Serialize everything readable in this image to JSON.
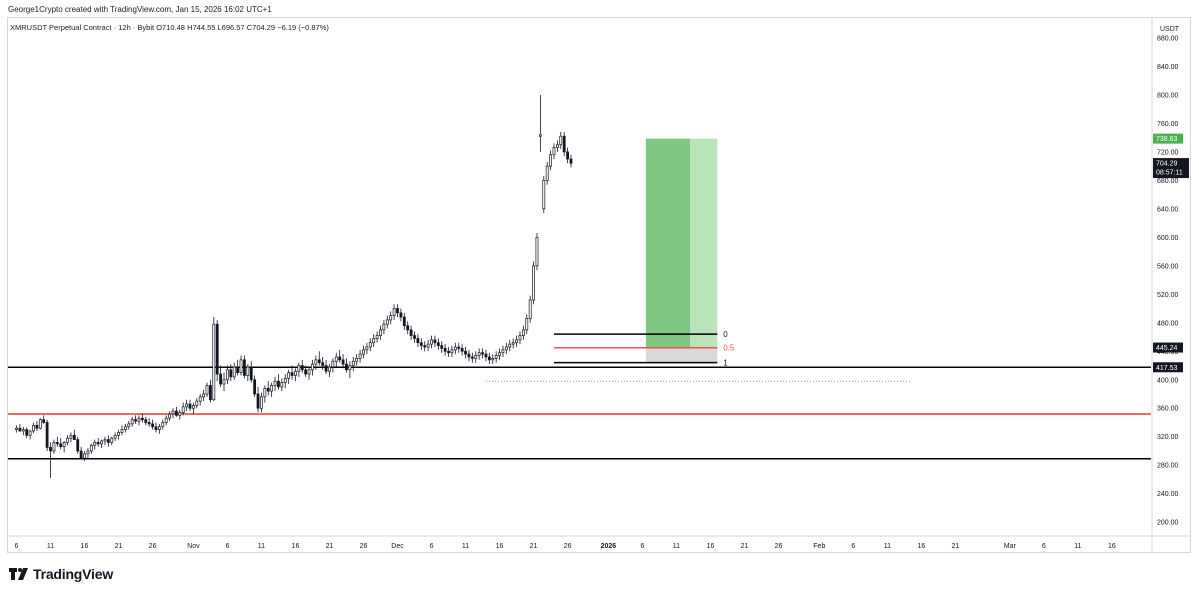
{
  "header": {
    "creator_line": "George1Crypto created with TradingView.com, Jan 15, 2026 16:02 UTC+1"
  },
  "legend": {
    "symbol_line": "XMRUSDT Perpetual Contract · 12h · Bybit",
    "open": "O710.48",
    "high": "H744.55",
    "low": "L696.57",
    "close": "C704.29",
    "change": "−6.19 (−0.87%)"
  },
  "colors": {
    "up": "#26a69a",
    "down": "#131722",
    "support_line": "#000000",
    "mid_line": "#e53935",
    "target_dark": "#81c784",
    "target_light": "#b9e3b9",
    "fib_zone": "#d9d9d9",
    "fib_mid": "#ef5350",
    "price_tag": "#131722"
  },
  "chart_data": {
    "type": "candlestick",
    "price_axis": {
      "unit": "USDT",
      "ticks": [
        "880.00",
        "840.00",
        "800.00",
        "760.00",
        "720.00",
        "680.00",
        "640.00",
        "600.00",
        "560.00",
        "520.00",
        "480.00",
        "440.00",
        "400.00",
        "360.00",
        "320.00",
        "280.00",
        "240.00",
        "200.00"
      ],
      "range": [
        182,
        908
      ]
    },
    "time_axis": {
      "ticks": [
        {
          "label": "6",
          "idx": 2
        },
        {
          "label": "11",
          "idx": 12
        },
        {
          "label": "16",
          "idx": 22
        },
        {
          "label": "21",
          "idx": 32
        },
        {
          "label": "26",
          "idx": 42
        },
        {
          "label": "Nov",
          "idx": 54
        },
        {
          "label": "6",
          "idx": 64
        },
        {
          "label": "11",
          "idx": 74
        },
        {
          "label": "16",
          "idx": 84
        },
        {
          "label": "21",
          "idx": 94
        },
        {
          "label": "26",
          "idx": 104
        },
        {
          "label": "Dec",
          "idx": 114
        },
        {
          "label": "6",
          "idx": 124
        },
        {
          "label": "11",
          "idx": 134
        },
        {
          "label": "16",
          "idx": 144
        },
        {
          "label": "21",
          "idx": 154
        },
        {
          "label": "26",
          "idx": 164
        },
        {
          "label": "2026",
          "idx": 176,
          "bold": true
        },
        {
          "label": "6",
          "idx": 186
        },
        {
          "label": "11",
          "idx": 196
        },
        {
          "label": "16",
          "idx": 206
        },
        {
          "label": "21",
          "idx": 216
        },
        {
          "label": "26",
          "idx": 226
        },
        {
          "label": "Feb",
          "idx": 238
        },
        {
          "label": "6",
          "idx": 248
        },
        {
          "label": "11",
          "idx": 258
        },
        {
          "label": "16",
          "idx": 268
        },
        {
          "label": "21",
          "idx": 278
        },
        {
          "label": "Mar",
          "idx": 294
        },
        {
          "label": "6",
          "idx": 304
        },
        {
          "label": "11",
          "idx": 314
        },
        {
          "label": "16",
          "idx": 324
        }
      ],
      "total_slots": 336
    },
    "candles": [
      [
        330,
        336,
        326,
        332
      ],
      [
        332,
        338,
        327,
        328
      ],
      [
        328,
        334,
        322,
        330
      ],
      [
        330,
        333,
        318,
        322
      ],
      [
        322,
        330,
        316,
        328
      ],
      [
        328,
        340,
        325,
        336
      ],
      [
        336,
        342,
        328,
        332
      ],
      [
        332,
        346,
        330,
        344
      ],
      [
        344,
        350,
        338,
        340
      ],
      [
        340,
        344,
        300,
        305
      ],
      [
        305,
        312,
        262,
        300
      ],
      [
        300,
        316,
        296,
        312
      ],
      [
        312,
        320,
        306,
        310
      ],
      [
        310,
        318,
        302,
        306
      ],
      [
        306,
        314,
        298,
        312
      ],
      [
        312,
        322,
        308,
        318
      ],
      [
        318,
        326,
        312,
        322
      ],
      [
        322,
        330,
        316,
        316
      ],
      [
        316,
        320,
        296,
        300
      ],
      [
        300,
        306,
        288,
        290
      ],
      [
        290,
        300,
        286,
        296
      ],
      [
        296,
        304,
        290,
        300
      ],
      [
        300,
        310,
        296,
        308
      ],
      [
        308,
        316,
        302,
        312
      ],
      [
        312,
        318,
        306,
        310
      ],
      [
        310,
        316,
        304,
        314
      ],
      [
        314,
        320,
        308,
        316
      ],
      [
        316,
        322,
        306,
        312
      ],
      [
        312,
        320,
        308,
        318
      ],
      [
        318,
        326,
        314,
        322
      ],
      [
        322,
        330,
        316,
        326
      ],
      [
        326,
        336,
        322,
        330
      ],
      [
        330,
        338,
        326,
        334
      ],
      [
        334,
        342,
        330,
        338
      ],
      [
        338,
        348,
        334,
        344
      ],
      [
        344,
        350,
        338,
        342
      ],
      [
        342,
        350,
        336,
        346
      ],
      [
        346,
        352,
        340,
        344
      ],
      [
        344,
        348,
        336,
        340
      ],
      [
        340,
        346,
        334,
        338
      ],
      [
        338,
        344,
        330,
        334
      ],
      [
        334,
        340,
        326,
        330
      ],
      [
        330,
        338,
        324,
        334
      ],
      [
        334,
        344,
        330,
        340
      ],
      [
        340,
        350,
        336,
        346
      ],
      [
        346,
        356,
        342,
        352
      ],
      [
        352,
        360,
        346,
        356
      ],
      [
        356,
        362,
        348,
        350
      ],
      [
        350,
        358,
        344,
        354
      ],
      [
        354,
        368,
        350,
        362
      ],
      [
        362,
        372,
        356,
        366
      ],
      [
        366,
        372,
        356,
        360
      ],
      [
        360,
        368,
        352,
        364
      ],
      [
        364,
        374,
        360,
        370
      ],
      [
        370,
        380,
        364,
        376
      ],
      [
        376,
        386,
        370,
        380
      ],
      [
        380,
        396,
        376,
        392
      ],
      [
        392,
        400,
        368,
        372
      ],
      [
        372,
        488,
        370,
        478
      ],
      [
        478,
        484,
        398,
        408
      ],
      [
        408,
        420,
        390,
        394
      ],
      [
        394,
        410,
        384,
        400
      ],
      [
        400,
        420,
        394,
        414
      ],
      [
        414,
        422,
        398,
        404
      ],
      [
        404,
        424,
        400,
        418
      ],
      [
        418,
        428,
        406,
        410
      ],
      [
        410,
        434,
        406,
        428
      ],
      [
        428,
        434,
        402,
        406
      ],
      [
        406,
        422,
        398,
        418
      ],
      [
        418,
        426,
        396,
        400
      ],
      [
        400,
        406,
        376,
        380
      ],
      [
        380,
        390,
        354,
        360
      ],
      [
        360,
        382,
        354,
        376
      ],
      [
        376,
        392,
        368,
        388
      ],
      [
        388,
        398,
        378,
        384
      ],
      [
        384,
        396,
        376,
        392
      ],
      [
        392,
        404,
        384,
        398
      ],
      [
        398,
        408,
        386,
        390
      ],
      [
        390,
        402,
        384,
        396
      ],
      [
        396,
        408,
        388,
        402
      ],
      [
        402,
        414,
        394,
        410
      ],
      [
        410,
        420,
        400,
        406
      ],
      [
        406,
        416,
        398,
        412
      ],
      [
        412,
        424,
        404,
        420
      ],
      [
        420,
        428,
        410,
        414
      ],
      [
        414,
        420,
        404,
        408
      ],
      [
        408,
        418,
        400,
        414
      ],
      [
        414,
        428,
        406,
        422
      ],
      [
        422,
        434,
        414,
        428
      ],
      [
        428,
        440,
        420,
        424
      ],
      [
        424,
        432,
        414,
        420
      ],
      [
        420,
        428,
        408,
        412
      ],
      [
        412,
        422,
        404,
        418
      ],
      [
        418,
        430,
        410,
        426
      ],
      [
        426,
        438,
        418,
        432
      ],
      [
        432,
        442,
        424,
        428
      ],
      [
        428,
        436,
        416,
        422
      ],
      [
        422,
        430,
        410,
        414
      ],
      [
        414,
        426,
        402,
        420
      ],
      [
        420,
        432,
        412,
        426
      ]
    ],
    "last_price": "704.29",
    "countdown": "08:57:11",
    "target_price": "738.63",
    "mid_price": "445.24",
    "support_price": "417.53",
    "horizontal_levels": [
      {
        "price": 417.53,
        "color": "support_line"
      },
      {
        "price": 352,
        "color": "mid_line"
      },
      {
        "price": 289,
        "color": "support_line"
      }
    ],
    "fib_levels": [
      {
        "label": "0",
        "price": 464
      },
      {
        "label": "0.5",
        "price": 445
      },
      {
        "label": "1",
        "price": 424
      }
    ],
    "target_box": {
      "from_idx": 187,
      "mid_idx": 200,
      "to_idx": 208,
      "top": 738.63,
      "bottom": 445.24
    },
    "dotted_level": 398
  }
}
